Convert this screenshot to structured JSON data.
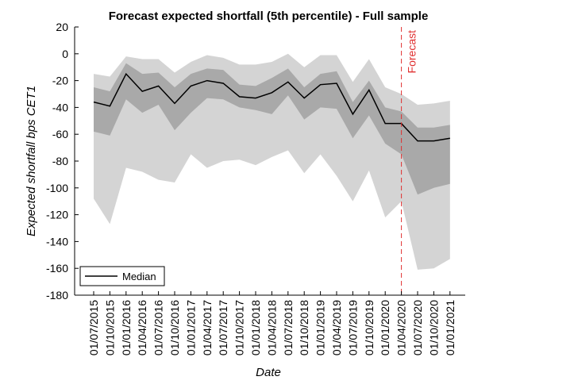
{
  "chart_data": {
    "type": "area",
    "title": "Forecast expected shortfall (5th percentile) -  Full sample",
    "xlabel": "Date",
    "ylabel": "Expected shortfall bps CET1",
    "ylim": [
      -180,
      20
    ],
    "yticks": [
      20,
      0,
      -20,
      -40,
      -60,
      -80,
      -100,
      -120,
      -140,
      -160,
      -180
    ],
    "categories": [
      "01/07/2015",
      "01/10/2015",
      "01/01/2016",
      "01/04/2016",
      "01/07/2016",
      "01/10/2016",
      "01/01/2017",
      "01/04/2017",
      "01/07/2017",
      "01/10/2017",
      "01/01/2018",
      "01/04/2018",
      "01/07/2018",
      "01/10/2018",
      "01/01/2019",
      "01/04/2019",
      "01/07/2019",
      "01/10/2019",
      "01/01/2020",
      "01/04/2020",
      "01/07/2020",
      "01/10/2020",
      "01/01/2021"
    ],
    "series": [
      {
        "name": "Median",
        "values": [
          -36,
          -39,
          -15,
          -28,
          -24,
          -37,
          -24,
          -20,
          -22,
          -32,
          -33,
          -29,
          -21,
          -33,
          -23,
          -22,
          -45,
          -27,
          -52,
          -52,
          -65,
          -65,
          -63
        ]
      }
    ],
    "bands": [
      {
        "lower": [
          -108,
          -127,
          -85,
          -88,
          -94,
          -96,
          -75,
          -85,
          -80,
          -79,
          -83,
          -77,
          -72,
          -89,
          -75,
          -91,
          -110,
          -87,
          -122,
          -110,
          -161,
          -160,
          -153
        ],
        "upper": [
          -15,
          -17,
          -2,
          -4,
          -4,
          -14,
          -6,
          -1,
          -3,
          -8,
          -8,
          -6,
          0,
          -10,
          -1,
          -1,
          -21,
          -4,
          -25,
          -30,
          -38,
          -37,
          -35
        ]
      },
      {
        "lower": [
          -58,
          -61,
          -34,
          -44,
          -38,
          -57,
          -44,
          -33,
          -34,
          -40,
          -42,
          -45,
          -31,
          -49,
          -40,
          -41,
          -63,
          -46,
          -67,
          -75,
          -105,
          -100,
          -97
        ],
        "upper": [
          -25,
          -28,
          -7,
          -15,
          -14,
          -25,
          -15,
          -11,
          -12,
          -23,
          -24,
          -18,
          -11,
          -25,
          -15,
          -13,
          -36,
          -20,
          -40,
          -43,
          -55,
          -55,
          -53
        ]
      }
    ],
    "band_colors": [
      "#d4d4d4",
      "#a9a9a9"
    ],
    "median_color": "#000000",
    "forecast_line": {
      "x_index": 19,
      "label": "Forecast",
      "color": "#e03030"
    },
    "legend": {
      "position": "bottom-left",
      "entries": [
        "Median"
      ]
    },
    "grid": false
  }
}
